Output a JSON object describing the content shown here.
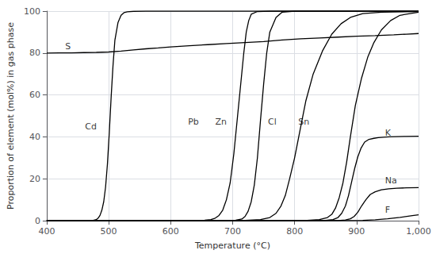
{
  "chart_data": {
    "type": "line",
    "xlabel": "Temperature (°C)",
    "ylabel": "Proportion of element (mol%) in gas phase",
    "xlim": [
      400,
      1000
    ],
    "ylim": [
      0,
      100
    ],
    "xticks": [
      400,
      500,
      600,
      700,
      800,
      900,
      1000
    ],
    "yticks": [
      0,
      20,
      40,
      60,
      80,
      100
    ],
    "grid": true,
    "series": [
      {
        "name": "S",
        "color": "#000000",
        "x": [
          400,
          420,
          440,
          460,
          480,
          500,
          520,
          540,
          560,
          580,
          600,
          630,
          660,
          690,
          720,
          750,
          780,
          810,
          840,
          870,
          900,
          930,
          960,
          980,
          1000
        ],
        "values": [
          80.0,
          80.1,
          80.1,
          80.2,
          80.3,
          80.5,
          80.9,
          81.5,
          82.0,
          82.4,
          82.9,
          83.5,
          84.0,
          84.5,
          85.0,
          85.5,
          86.2,
          86.8,
          87.2,
          87.6,
          88.0,
          88.3,
          88.7,
          89.0,
          89.3
        ]
      },
      {
        "name": "Cd",
        "color": "#000000",
        "x": [
          400,
          440,
          460,
          470,
          475,
          480,
          483,
          486,
          489,
          492,
          495,
          498,
          501,
          504,
          507,
          510,
          515,
          520,
          525,
          530,
          540,
          560,
          600,
          700,
          1000
        ],
        "values": [
          0.0,
          0.0,
          0.01,
          0.05,
          0.15,
          0.5,
          1.2,
          2.5,
          5.0,
          9.0,
          16.0,
          27.0,
          42.0,
          59.0,
          74.0,
          86.0,
          94.5,
          98.0,
          99.3,
          99.7,
          99.9,
          100.0,
          100.0,
          100.0,
          100.0
        ]
      },
      {
        "name": "Pb",
        "color": "#000000",
        "x": [
          400,
          580,
          620,
          640,
          655,
          665,
          672,
          678,
          684,
          690,
          696,
          702,
          708,
          714,
          718,
          722,
          726,
          730,
          740,
          760,
          800,
          1000
        ],
        "values": [
          0.0,
          0.0,
          0.01,
          0.05,
          0.2,
          0.5,
          1.2,
          2.5,
          5.0,
          10.0,
          18.0,
          32.0,
          50.0,
          68.0,
          80.0,
          90.0,
          95.5,
          98.5,
          99.8,
          100.0,
          100.0,
          100.0
        ]
      },
      {
        "name": "Zn",
        "color": "#000000",
        "x": [
          400,
          600,
          660,
          690,
          705,
          715,
          720,
          725,
          730,
          735,
          740,
          745,
          750,
          755,
          760,
          770,
          780,
          800,
          900,
          1000
        ],
        "values": [
          0.0,
          0.0,
          0.01,
          0.05,
          0.2,
          0.8,
          2.0,
          4.5,
          9.0,
          17.0,
          30.0,
          48.0,
          65.0,
          80.0,
          90.0,
          97.0,
          99.5,
          100.0,
          100.0,
          100.0
        ]
      },
      {
        "name": "Cl",
        "color": "#000000",
        "x": [
          400,
          600,
          680,
          720,
          745,
          760,
          770,
          778,
          785,
          792,
          800,
          808,
          818,
          830,
          845,
          860,
          875,
          890,
          910,
          940,
          1000
        ],
        "values": [
          0.0,
          0.0,
          0.01,
          0.1,
          0.5,
          1.5,
          3.5,
          7.0,
          12.0,
          20.0,
          30.0,
          42.0,
          57.0,
          70.0,
          81.0,
          89.0,
          94.0,
          97.0,
          98.8,
          99.5,
          99.8
        ]
      },
      {
        "name": "Sn",
        "color": "#000000",
        "x": [
          400,
          600,
          720,
          780,
          820,
          840,
          853,
          860,
          866,
          872,
          878,
          884,
          890,
          898,
          908,
          918,
          928,
          940,
          955,
          970,
          1000
        ],
        "values": [
          0.0,
          0.0,
          0.0,
          0.01,
          0.1,
          0.5,
          1.5,
          3.0,
          6.0,
          11.0,
          18.0,
          28.0,
          40.0,
          55.0,
          68.0,
          78.0,
          85.0,
          91.0,
          95.5,
          98.0,
          99.5
        ]
      },
      {
        "name": "K",
        "color": "#000000",
        "x": [
          400,
          700,
          820,
          850,
          862,
          870,
          876,
          882,
          887,
          892,
          897,
          902,
          907,
          913,
          920,
          928,
          935,
          943,
          953,
          965,
          980,
          1000
        ],
        "values": [
          0.0,
          0.0,
          0.01,
          0.1,
          0.5,
          1.5,
          3.5,
          7.0,
          12.0,
          18.5,
          25.0,
          30.5,
          34.5,
          37.5,
          38.8,
          39.3,
          39.6,
          39.8,
          40.0,
          40.1,
          40.2,
          40.3
        ]
      },
      {
        "name": "Na",
        "color": "#000000",
        "x": [
          400,
          700,
          840,
          870,
          882,
          890,
          896,
          902,
          908,
          915,
          922,
          930,
          940,
          952,
          965,
          980,
          1000
        ],
        "values": [
          0.0,
          0.0,
          0.01,
          0.08,
          0.3,
          0.9,
          2.0,
          4.0,
          7.0,
          10.0,
          12.5,
          13.8,
          14.7,
          15.2,
          15.5,
          15.65,
          15.8
        ]
      },
      {
        "name": "F",
        "color": "#000000",
        "x": [
          400,
          700,
          860,
          890,
          910,
          930,
          950,
          970,
          990,
          1000
        ],
        "values": [
          0.0,
          0.0,
          0.01,
          0.05,
          0.15,
          0.4,
          0.9,
          1.6,
          2.4,
          2.8
        ]
      }
    ],
    "annotations": [
      {
        "text": "S",
        "x": 430,
        "y": 83
      },
      {
        "text": "Cd",
        "x": 462,
        "y": 45
      },
      {
        "text": "Pb",
        "x": 628,
        "y": 47
      },
      {
        "text": "Zn",
        "x": 672,
        "y": 47
      },
      {
        "text": "Cl",
        "x": 757,
        "y": 47
      },
      {
        "text": "Sn",
        "x": 806,
        "y": 47
      },
      {
        "text": "K",
        "x": 946,
        "y": 42
      },
      {
        "text": "Na",
        "x": 946,
        "y": 19
      },
      {
        "text": "F",
        "x": 946,
        "y": 5
      }
    ]
  }
}
